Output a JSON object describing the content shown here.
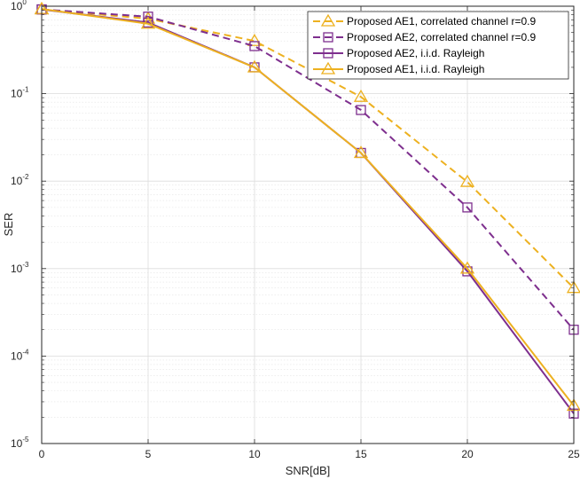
{
  "chart_data": {
    "type": "line",
    "title": "",
    "xlabel": "SNR[dB]",
    "ylabel": "SER",
    "xlim": [
      0,
      25
    ],
    "ylim": [
      1e-05,
      1
    ],
    "yscale": "log",
    "grid": true,
    "legend_position": "top-right",
    "x_ticks": [
      "0",
      "5",
      "10",
      "15",
      "20",
      "25"
    ],
    "y_ticks": [
      {
        "base": "10",
        "exp": "-5"
      },
      {
        "base": "10",
        "exp": "-4"
      },
      {
        "base": "10",
        "exp": "-3"
      },
      {
        "base": "10",
        "exp": "-2"
      },
      {
        "base": "10",
        "exp": "-1"
      },
      {
        "base": "10",
        "exp": "0"
      }
    ],
    "x": [
      0,
      5,
      10,
      15,
      20,
      25
    ],
    "series": [
      {
        "name": "Proposed AE1, correlated channel r=0.9",
        "color": "#EDB120",
        "marker": "triangle",
        "dash": true,
        "values": [
          0.92,
          0.72,
          0.4,
          0.092,
          0.0098,
          0.0006
        ]
      },
      {
        "name": "Proposed AE2, correlated channel r=0.9",
        "color": "#7E2F8E",
        "marker": "square",
        "dash": true,
        "values": [
          0.92,
          0.76,
          0.35,
          0.065,
          0.005,
          0.0002
        ]
      },
      {
        "name": "Proposed AE2, i.i.d. Rayleigh",
        "color": "#7E2F8E",
        "marker": "square",
        "dash": false,
        "values": [
          0.92,
          0.65,
          0.2,
          0.021,
          0.00093,
          2.2e-05
        ]
      },
      {
        "name": "Proposed AE1, i.i.d. Rayleigh",
        "color": "#EDB120",
        "marker": "triangle",
        "dash": false,
        "values": [
          0.93,
          0.63,
          0.2,
          0.021,
          0.001,
          2.7e-05
        ]
      }
    ]
  }
}
